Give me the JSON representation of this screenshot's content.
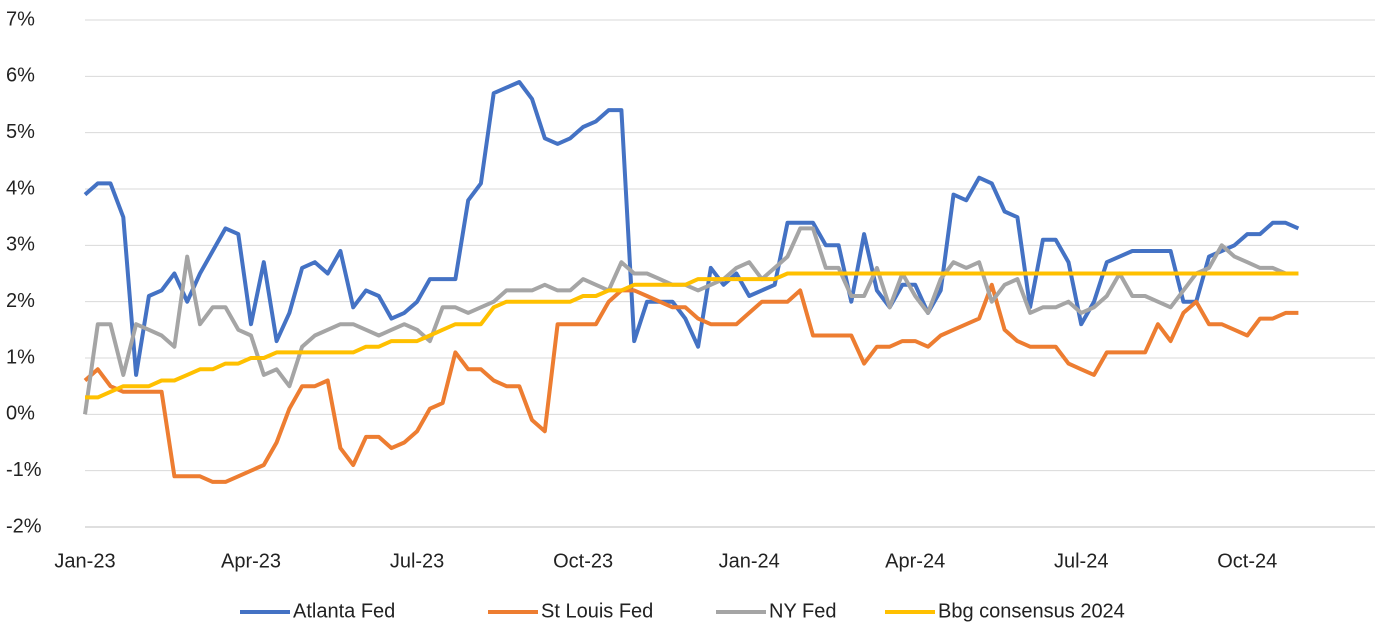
{
  "chart_data": {
    "type": "line",
    "categories": [
      "Jan-23",
      null,
      null,
      null,
      null,
      null,
      null,
      null,
      null,
      null,
      null,
      null,
      null,
      "Apr-23",
      null,
      null,
      null,
      null,
      null,
      null,
      null,
      null,
      null,
      null,
      null,
      null,
      "Jul-23",
      null,
      null,
      null,
      null,
      null,
      null,
      null,
      null,
      null,
      null,
      null,
      null,
      "Oct-23",
      null,
      null,
      null,
      null,
      null,
      null,
      null,
      null,
      null,
      null,
      null,
      null,
      "Jan-24",
      null,
      null,
      null,
      null,
      null,
      null,
      null,
      null,
      null,
      null,
      null,
      null,
      "Apr-24",
      null,
      null,
      null,
      null,
      null,
      null,
      null,
      null,
      null,
      null,
      null,
      null,
      "Jul-24",
      null,
      null,
      null,
      null,
      null,
      null,
      null,
      null,
      null,
      null,
      null,
      null,
      "Oct-24",
      null,
      null,
      null,
      null,
      null,
      null,
      null,
      null,
      null,
      null
    ],
    "series": [
      {
        "name": "Atlanta Fed",
        "color": "#4472c4",
        "values": [
          3.9,
          4.1,
          4.1,
          3.5,
          0.7,
          2.1,
          2.2,
          2.5,
          2.0,
          2.5,
          2.9,
          3.3,
          3.2,
          1.6,
          2.7,
          1.3,
          1.8,
          2.6,
          2.7,
          2.5,
          2.9,
          1.9,
          2.2,
          2.1,
          1.7,
          1.8,
          2.0,
          2.4,
          2.4,
          2.4,
          3.8,
          4.1,
          5.7,
          5.8,
          5.9,
          5.6,
          4.9,
          4.8,
          4.9,
          5.1,
          5.2,
          5.4,
          5.4,
          1.3,
          2.0,
          2.0,
          2.0,
          1.7,
          1.2,
          2.6,
          2.3,
          2.5,
          2.1,
          2.2,
          2.3,
          3.4,
          3.4,
          3.4,
          3.0,
          3.0,
          2.0,
          3.2,
          2.2,
          1.9,
          2.3,
          2.3,
          1.8,
          2.2,
          3.9,
          3.8,
          4.2,
          4.1,
          3.6,
          3.5,
          1.9,
          3.1,
          3.1,
          2.7,
          1.6,
          2.0,
          2.7,
          2.8,
          2.9,
          2.9,
          2.9,
          2.9,
          2.0,
          2.0,
          2.8,
          2.9,
          3.0,
          3.2,
          3.2,
          3.4,
          3.4,
          3.3,
          null,
          null,
          null,
          null,
          null,
          null
        ]
      },
      {
        "name": "St Louis Fed",
        "color": "#ed7d31",
        "values": [
          0.6,
          0.8,
          0.5,
          0.4,
          0.4,
          0.4,
          0.4,
          -1.1,
          -1.1,
          -1.1,
          -1.2,
          -1.2,
          -1.1,
          -1.0,
          -0.9,
          -0.5,
          0.1,
          0.5,
          0.5,
          0.6,
          -0.6,
          -0.9,
          -0.4,
          -0.4,
          -0.6,
          -0.5,
          -0.3,
          0.1,
          0.2,
          1.1,
          0.8,
          0.8,
          0.6,
          0.5,
          0.5,
          -0.1,
          -0.3,
          1.6,
          1.6,
          1.6,
          1.6,
          2.0,
          2.2,
          2.2,
          2.1,
          2.0,
          1.9,
          1.9,
          1.7,
          1.6,
          1.6,
          1.6,
          1.8,
          2.0,
          2.0,
          2.0,
          2.2,
          1.4,
          1.4,
          1.4,
          1.4,
          0.9,
          1.2,
          1.2,
          1.3,
          1.3,
          1.2,
          1.4,
          1.5,
          1.6,
          1.7,
          2.3,
          1.5,
          1.3,
          1.2,
          1.2,
          1.2,
          0.9,
          0.8,
          0.7,
          1.1,
          1.1,
          1.1,
          1.1,
          1.6,
          1.3,
          1.8,
          2.0,
          1.6,
          1.6,
          1.5,
          1.4,
          1.7,
          1.7,
          1.8,
          1.8,
          null,
          null,
          null,
          null,
          null,
          null
        ]
      },
      {
        "name": "NY Fed",
        "color": "#a5a5a5",
        "values": [
          0.0,
          1.6,
          1.6,
          0.7,
          1.6,
          1.5,
          1.4,
          1.2,
          2.8,
          1.6,
          1.9,
          1.9,
          1.5,
          1.4,
          0.7,
          0.8,
          0.5,
          1.2,
          1.4,
          1.5,
          1.6,
          1.6,
          1.5,
          1.4,
          1.5,
          1.6,
          1.5,
          1.3,
          1.9,
          1.9,
          1.8,
          1.9,
          2.0,
          2.2,
          2.2,
          2.2,
          2.3,
          2.2,
          2.2,
          2.4,
          2.3,
          2.2,
          2.7,
          2.5,
          2.5,
          2.4,
          2.3,
          2.3,
          2.2,
          2.3,
          2.4,
          2.6,
          2.7,
          2.4,
          2.6,
          2.8,
          3.3,
          3.3,
          2.6,
          2.6,
          2.1,
          2.1,
          2.6,
          1.9,
          2.5,
          2.1,
          1.8,
          2.4,
          2.7,
          2.6,
          2.7,
          2.0,
          2.3,
          2.4,
          1.8,
          1.9,
          1.9,
          2.0,
          1.8,
          1.9,
          2.1,
          2.5,
          2.1,
          2.1,
          2.0,
          1.9,
          2.2,
          2.5,
          2.6,
          3.0,
          2.8,
          2.7,
          2.6,
          2.6,
          2.5,
          2.5,
          null,
          null,
          null,
          null,
          null,
          null
        ]
      },
      {
        "name": "Bbg consensus 2024",
        "color": "#ffc000",
        "values": [
          0.3,
          0.3,
          0.4,
          0.5,
          0.5,
          0.5,
          0.6,
          0.6,
          0.7,
          0.8,
          0.8,
          0.9,
          0.9,
          1.0,
          1.0,
          1.1,
          1.1,
          1.1,
          1.1,
          1.1,
          1.1,
          1.1,
          1.2,
          1.2,
          1.3,
          1.3,
          1.3,
          1.4,
          1.5,
          1.6,
          1.6,
          1.6,
          1.9,
          2.0,
          2.0,
          2.0,
          2.0,
          2.0,
          2.0,
          2.1,
          2.1,
          2.2,
          2.2,
          2.3,
          2.3,
          2.3,
          2.3,
          2.3,
          2.4,
          2.4,
          2.4,
          2.4,
          2.4,
          2.4,
          2.4,
          2.5,
          2.5,
          2.5,
          2.5,
          2.5,
          2.5,
          2.5,
          2.5,
          2.5,
          2.5,
          2.5,
          2.5,
          2.5,
          2.5,
          2.5,
          2.5,
          2.5,
          2.5,
          2.5,
          2.5,
          2.5,
          2.5,
          2.5,
          2.5,
          2.5,
          2.5,
          2.5,
          2.5,
          2.5,
          2.5,
          2.5,
          2.5,
          2.5,
          2.5,
          2.5,
          2.5,
          2.5,
          2.5,
          2.5,
          2.5,
          2.5,
          null,
          null,
          null,
          null,
          null,
          null
        ]
      }
    ],
    "ylim": [
      -2,
      7
    ],
    "yticks": [
      {
        "value": -2,
        "label": "-2%"
      },
      {
        "value": -1,
        "label": "-1%"
      },
      {
        "value": 0,
        "label": "0%"
      },
      {
        "value": 1,
        "label": "1%"
      },
      {
        "value": 2,
        "label": "2%"
      },
      {
        "value": 3,
        "label": "3%"
      },
      {
        "value": 4,
        "label": "4%"
      },
      {
        "value": 5,
        "label": "5%"
      },
      {
        "value": 6,
        "label": "6%"
      },
      {
        "value": 7,
        "label": "7%"
      }
    ],
    "grid": true,
    "legend": "bottom"
  }
}
